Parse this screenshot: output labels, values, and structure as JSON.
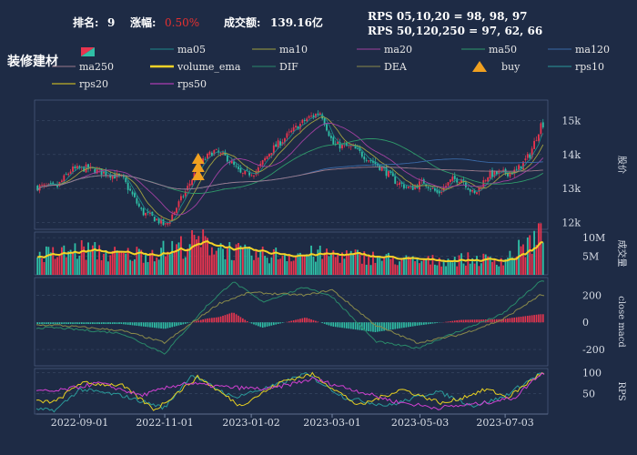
{
  "header": {
    "rank_label": "排名:",
    "rank_value": "9",
    "change_label": "涨幅:",
    "change_value": "0.50%",
    "turnover_label": "成交额:",
    "turnover_value": "139.16亿",
    "rps_line1": "RPS 05,10,20 = 98,  98,  97",
    "rps_line2": "RPS 50,120,250 = 97,  62,  66"
  },
  "title": "装修建材",
  "legend": [
    {
      "label": "ma05",
      "color": "#1f8a8a",
      "style": "line"
    },
    {
      "label": "ma10",
      "color": "#a0a040",
      "style": "line"
    },
    {
      "label": "ma20",
      "color": "#a040a0",
      "style": "line"
    },
    {
      "label": "ma50",
      "color": "#2f9a6a",
      "style": "line"
    },
    {
      "label": "ma120",
      "color": "#3a6aa8",
      "style": "line"
    },
    {
      "label": "ma250",
      "color": "#9a7a8a",
      "style": "line"
    },
    {
      "label": "volume_ema",
      "color": "#f5d327",
      "style": "thick"
    },
    {
      "label": "DIF",
      "color": "#2a8a6a",
      "style": "line"
    },
    {
      "label": "DEA",
      "color": "#8a8a4a",
      "style": "line"
    },
    {
      "label": "buy",
      "color": "#f0a020",
      "style": "triangle"
    },
    {
      "label": "rps10",
      "color": "#2a9a9a",
      "style": "line"
    },
    {
      "label": "rps20",
      "color": "#e8d020",
      "style": "line"
    },
    {
      "label": "rps50",
      "color": "#d040d0",
      "style": "line"
    }
  ],
  "colors": {
    "background": "#1e2b45",
    "up": "#e8354f",
    "down": "#2fbfa6",
    "grid": "#3a4a66",
    "rank_change": "#e83030"
  },
  "chart_data": [
    {
      "type": "candlestick",
      "name": "price",
      "ylabel": "股价",
      "y_ticks": [
        "12k",
        "13k",
        "14k",
        "15k"
      ],
      "ylim": [
        11800,
        15600
      ],
      "approx_close_path": [
        {
          "date": "2022-08-15",
          "close": 13050
        },
        {
          "date": "2022-08-25",
          "close": 13550
        },
        {
          "date": "2022-09-05",
          "close": 13600
        },
        {
          "date": "2022-09-20",
          "close": 13450
        },
        {
          "date": "2022-10-01",
          "close": 13300
        },
        {
          "date": "2022-10-15",
          "close": 12300
        },
        {
          "date": "2022-10-25",
          "close": 12100
        },
        {
          "date": "2022-11-01",
          "close": 11900
        },
        {
          "date": "2022-11-15",
          "close": 12900
        },
        {
          "date": "2022-11-25",
          "close": 13700
        },
        {
          "date": "2022-12-05",
          "close": 14100
        },
        {
          "date": "2022-12-15",
          "close": 13900
        },
        {
          "date": "2022-12-25",
          "close": 13400
        },
        {
          "date": "2023-01-05",
          "close": 13500
        },
        {
          "date": "2023-01-15",
          "close": 14100
        },
        {
          "date": "2023-01-31",
          "close": 14700
        },
        {
          "date": "2023-02-10",
          "close": 15050
        },
        {
          "date": "2023-02-20",
          "close": 15250
        },
        {
          "date": "2023-03-01",
          "close": 14300
        },
        {
          "date": "2023-03-15",
          "close": 14200
        },
        {
          "date": "2023-03-25",
          "close": 13900
        },
        {
          "date": "2023-04-05",
          "close": 13600
        },
        {
          "date": "2023-04-15",
          "close": 13200
        },
        {
          "date": "2023-04-25",
          "close": 13000
        },
        {
          "date": "2023-05-05",
          "close": 13200
        },
        {
          "date": "2023-05-15",
          "close": 12850
        },
        {
          "date": "2023-05-25",
          "close": 13250
        },
        {
          "date": "2023-06-01",
          "close": 13300
        },
        {
          "date": "2023-06-10",
          "close": 12800
        },
        {
          "date": "2023-06-20",
          "close": 13400
        },
        {
          "date": "2023-07-01",
          "close": 13450
        },
        {
          "date": "2023-07-10",
          "close": 13500
        },
        {
          "date": "2023-07-20",
          "close": 14000
        },
        {
          "date": "2023-07-28",
          "close": 14900
        }
      ],
      "buy_signals": [
        {
          "date": "2022-11-25",
          "count": 3
        }
      ]
    },
    {
      "type": "bar",
      "name": "volume",
      "ylabel": "成交量",
      "y_ticks": [
        "5M",
        "10M"
      ],
      "ylim": [
        0,
        11500000
      ],
      "approx_values": [
        {
          "date": "2022-08-15",
          "value": 5500000
        },
        {
          "date": "2022-09-01",
          "value": 6800000
        },
        {
          "date": "2022-10-01",
          "value": 5200000
        },
        {
          "date": "2022-11-01",
          "value": 6600000
        },
        {
          "date": "2022-11-25",
          "value": 9000000
        },
        {
          "date": "2023-01-01",
          "value": 5200000
        },
        {
          "date": "2023-02-01",
          "value": 5600000
        },
        {
          "date": "2023-03-01",
          "value": 5400000
        },
        {
          "date": "2023-04-01",
          "value": 4600000
        },
        {
          "date": "2023-05-01",
          "value": 3600000
        },
        {
          "date": "2023-06-01",
          "value": 4200000
        },
        {
          "date": "2023-07-01",
          "value": 4000000
        },
        {
          "date": "2023-07-28",
          "value": 10300000
        }
      ]
    },
    {
      "type": "line",
      "name": "macd",
      "ylabel": "close macd",
      "y_ticks": [
        "-200",
        "0",
        "200"
      ],
      "ylim": [
        -320,
        330
      ],
      "series": [
        {
          "name": "DIF",
          "values": [
            {
              "date": "2022-08-15",
              "value": -40
            },
            {
              "date": "2022-10-01",
              "value": -80
            },
            {
              "date": "2022-11-01",
              "value": -230
            },
            {
              "date": "2022-12-01",
              "value": 120
            },
            {
              "date": "2022-12-20",
              "value": 300
            },
            {
              "date": "2023-01-10",
              "value": 150
            },
            {
              "date": "2023-02-10",
              "value": 260
            },
            {
              "date": "2023-03-01",
              "value": 190
            },
            {
              "date": "2023-04-01",
              "value": -140
            },
            {
              "date": "2023-05-01",
              "value": -190
            },
            {
              "date": "2023-06-01",
              "value": -60
            },
            {
              "date": "2023-07-01",
              "value": 60
            },
            {
              "date": "2023-07-28",
              "value": 300
            }
          ]
        },
        {
          "name": "DEA",
          "values": [
            {
              "date": "2022-08-15",
              "value": -20
            },
            {
              "date": "2022-10-01",
              "value": -60
            },
            {
              "date": "2022-11-01",
              "value": -150
            },
            {
              "date": "2022-12-10",
              "value": 140
            },
            {
              "date": "2023-01-01",
              "value": 220
            },
            {
              "date": "2023-02-10",
              "value": 200
            },
            {
              "date": "2023-03-01",
              "value": 240
            },
            {
              "date": "2023-04-01",
              "value": -20
            },
            {
              "date": "2023-05-01",
              "value": -150
            },
            {
              "date": "2023-06-01",
              "value": -90
            },
            {
              "date": "2023-07-01",
              "value": 20
            },
            {
              "date": "2023-07-28",
              "value": 200
            }
          ]
        }
      ]
    },
    {
      "type": "line",
      "name": "rps",
      "ylabel": "RPS",
      "y_ticks": [
        "50",
        "100"
      ],
      "ylim": [
        0,
        110
      ],
      "series": [
        {
          "name": "rps10",
          "values": [
            {
              "date": "2022-08-15",
              "value": 10
            },
            {
              "date": "2022-09-01",
              "value": 60
            },
            {
              "date": "2022-10-01",
              "value": 45
            },
            {
              "date": "2022-11-01",
              "value": 15
            },
            {
              "date": "2022-11-20",
              "value": 95
            },
            {
              "date": "2022-12-20",
              "value": 40
            },
            {
              "date": "2023-01-20",
              "value": 70
            },
            {
              "date": "2023-02-10",
              "value": 98
            },
            {
              "date": "2023-03-10",
              "value": 40
            },
            {
              "date": "2023-04-10",
              "value": 20
            },
            {
              "date": "2023-05-15",
              "value": 55
            },
            {
              "date": "2023-06-10",
              "value": 20
            },
            {
              "date": "2023-07-01",
              "value": 40
            },
            {
              "date": "2023-07-28",
              "value": 98
            }
          ]
        },
        {
          "name": "rps20",
          "values": [
            {
              "date": "2022-08-15",
              "value": 30
            },
            {
              "date": "2022-09-01",
              "value": 75
            },
            {
              "date": "2022-10-01",
              "value": 70
            },
            {
              "date": "2022-10-25",
              "value": 10
            },
            {
              "date": "2022-11-25",
              "value": 90
            },
            {
              "date": "2022-12-25",
              "value": 20
            },
            {
              "date": "2023-01-25",
              "value": 80
            },
            {
              "date": "2023-02-15",
              "value": 96
            },
            {
              "date": "2023-03-20",
              "value": 20
            },
            {
              "date": "2023-04-20",
              "value": 60
            },
            {
              "date": "2023-05-20",
              "value": 25
            },
            {
              "date": "2023-06-20",
              "value": 60
            },
            {
              "date": "2023-07-05",
              "value": 40
            },
            {
              "date": "2023-07-28",
              "value": 97
            }
          ]
        },
        {
          "name": "rps50",
          "values": [
            {
              "date": "2022-08-15",
              "value": 55
            },
            {
              "date": "2022-09-15",
              "value": 75
            },
            {
              "date": "2022-10-15",
              "value": 45
            },
            {
              "date": "2022-11-15",
              "value": 75
            },
            {
              "date": "2022-12-15",
              "value": 65
            },
            {
              "date": "2023-01-15",
              "value": 60
            },
            {
              "date": "2023-02-15",
              "value": 85
            },
            {
              "date": "2023-03-15",
              "value": 60
            },
            {
              "date": "2023-04-15",
              "value": 30
            },
            {
              "date": "2023-05-15",
              "value": 15
            },
            {
              "date": "2023-06-15",
              "value": 25
            },
            {
              "date": "2023-07-10",
              "value": 40
            },
            {
              "date": "2023-07-28",
              "value": 97
            }
          ]
        }
      ]
    }
  ],
  "x_axis": {
    "range": [
      "2022-08-01",
      "2023-07-31"
    ],
    "ticks": [
      "2022-09-01",
      "2022-11-01",
      "2023-01-02",
      "2023-03-01",
      "2023-05-03",
      "2023-07-03"
    ]
  }
}
